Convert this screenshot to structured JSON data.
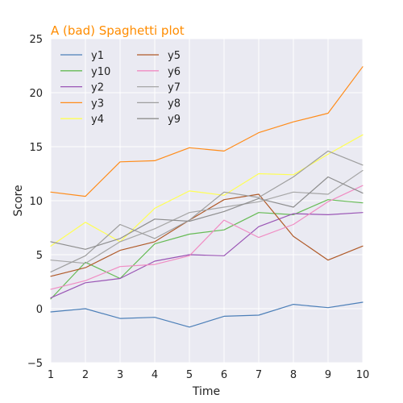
{
  "chart_data": {
    "type": "line",
    "title": "A (bad) Spaghetti plot",
    "xlabel": "Time",
    "ylabel": "Score",
    "x": [
      1,
      2,
      3,
      4,
      5,
      6,
      7,
      8,
      9,
      10
    ],
    "xlim": [
      1,
      10
    ],
    "ylim": [
      -5,
      25
    ],
    "xticks": [
      "1",
      "2",
      "3",
      "4",
      "5",
      "6",
      "7",
      "8",
      "9",
      "10"
    ],
    "yticks": [
      "−5",
      "0",
      "5",
      "10",
      "15",
      "20",
      "25"
    ],
    "ytick_values": [
      -5,
      0,
      5,
      10,
      15,
      20,
      25
    ],
    "grid": true,
    "legend_position": "top-left",
    "legend_columns": 2,
    "background_color": "#eaeaf2",
    "title_color": "#ff8c00",
    "series": [
      {
        "name": "y1",
        "color": "#4c7fb8",
        "values": [
          -0.3,
          0.0,
          -0.9,
          -0.8,
          -1.7,
          -0.7,
          -0.6,
          0.4,
          0.1,
          0.6
        ]
      },
      {
        "name": "y10",
        "color": "#66bb55",
        "values": [
          0.9,
          4.3,
          2.8,
          6.0,
          6.9,
          7.3,
          8.9,
          8.7,
          10.1,
          9.8
        ]
      },
      {
        "name": "y2",
        "color": "#9a55b5",
        "values": [
          1.0,
          2.4,
          2.8,
          4.4,
          5.0,
          4.9,
          7.6,
          8.8,
          8.7,
          8.9
        ]
      },
      {
        "name": "y3",
        "color": "#ff8c1a",
        "values": [
          10.8,
          10.4,
          13.6,
          13.7,
          14.9,
          14.6,
          16.3,
          17.3,
          18.1,
          22.4
        ]
      },
      {
        "name": "y4",
        "color": "#ffff55",
        "values": [
          5.8,
          8.0,
          6.2,
          9.3,
          10.9,
          10.5,
          12.5,
          12.4,
          14.3,
          16.1
        ]
      },
      {
        "name": "y5",
        "color": "#b05a28",
        "values": [
          3.0,
          3.8,
          5.4,
          6.2,
          8.2,
          10.1,
          10.6,
          6.7,
          4.5,
          5.8
        ]
      },
      {
        "name": "y6",
        "color": "#f08cc3",
        "values": [
          1.8,
          2.6,
          3.9,
          4.1,
          4.9,
          8.2,
          6.6,
          7.8,
          9.9,
          11.4
        ]
      },
      {
        "name": "y7",
        "color": "#a6a6a6",
        "values": [
          4.5,
          4.2,
          6.2,
          7.4,
          8.9,
          9.4,
          9.9,
          10.8,
          10.6,
          12.8
        ]
      },
      {
        "name": "y8",
        "color": "#9e9e9e",
        "values": [
          3.4,
          4.9,
          7.8,
          6.5,
          8.2,
          10.8,
          10.3,
          12.2,
          14.6,
          13.3
        ]
      },
      {
        "name": "y9",
        "color": "#8e8e8e",
        "values": [
          6.2,
          5.5,
          6.5,
          8.3,
          8.1,
          9.0,
          10.2,
          9.4,
          12.2,
          10.7
        ]
      }
    ]
  }
}
